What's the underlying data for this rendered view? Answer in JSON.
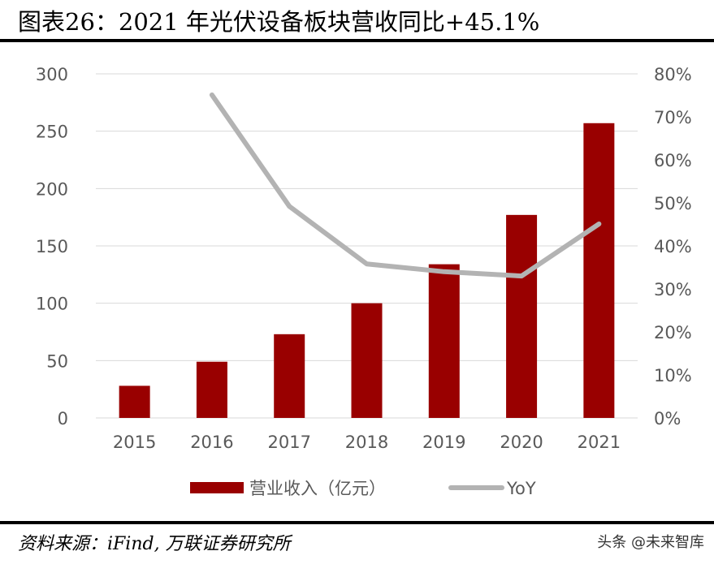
{
  "title": "图表26：2021 年光伏设备板块营收同比+45.1%",
  "source": "资料来源：iFind, 万联证券研究所",
  "watermark": "头条 @未来智库",
  "chart_data": {
    "type": "bar+line",
    "categories": [
      "2015",
      "2016",
      "2017",
      "2018",
      "2019",
      "2020",
      "2021"
    ],
    "series": [
      {
        "name": "营业收入（亿元）",
        "type": "bar",
        "axis": "left",
        "color": "#990000",
        "values": [
          28,
          49,
          73,
          100,
          134,
          177,
          257
        ]
      },
      {
        "name": "YoY",
        "type": "line",
        "axis": "right",
        "color": "#b3b3b3",
        "values": [
          null,
          75.1,
          49.2,
          35.8,
          34.0,
          33.0,
          45.1
        ]
      }
    ],
    "left_axis": {
      "ylim": [
        0,
        300
      ],
      "ticks": [
        "0",
        "50",
        "100",
        "150",
        "200",
        "250",
        "300"
      ]
    },
    "right_axis": {
      "ylim": [
        0,
        80
      ],
      "ticks": [
        "0%",
        "10%",
        "20%",
        "30%",
        "40%",
        "50%",
        "60%",
        "70%",
        "80%"
      ]
    },
    "grid": true,
    "legend_position": "bottom"
  }
}
